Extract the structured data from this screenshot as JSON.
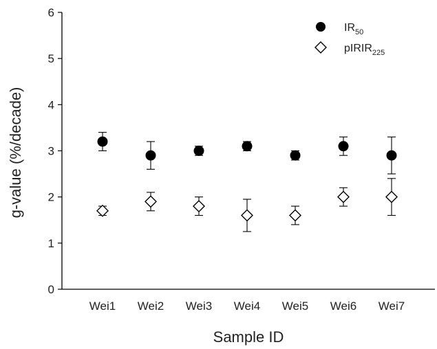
{
  "chart_data": {
    "type": "scatter",
    "xlabel": "Sample ID",
    "ylabel": "g-value (%/decade)",
    "categories": [
      "Wei1",
      "Wei2",
      "Wei3",
      "Wei4",
      "Wei5",
      "Wei6",
      "Wei7"
    ],
    "ylim": [
      0,
      6
    ],
    "yticks": [
      "0",
      "1",
      "2",
      "3",
      "4",
      "5",
      "6"
    ],
    "grid": false,
    "legend_position": "top-right",
    "series": [
      {
        "name": "IR",
        "name_sub": "50",
        "marker": "filled-circle",
        "color": "#000000",
        "values": [
          3.2,
          2.9,
          3.0,
          3.1,
          2.9,
          3.1,
          2.9
        ],
        "errors": [
          0.2,
          0.3,
          0.1,
          0.1,
          0.1,
          0.2,
          0.4
        ]
      },
      {
        "name": "pIRIR",
        "name_sub": "225",
        "marker": "open-diamond",
        "color": "#000000",
        "values": [
          1.7,
          1.9,
          1.8,
          1.6,
          1.6,
          2.0,
          2.0
        ],
        "errors": [
          0.1,
          0.2,
          0.2,
          0.35,
          0.2,
          0.2,
          0.4
        ]
      }
    ]
  }
}
